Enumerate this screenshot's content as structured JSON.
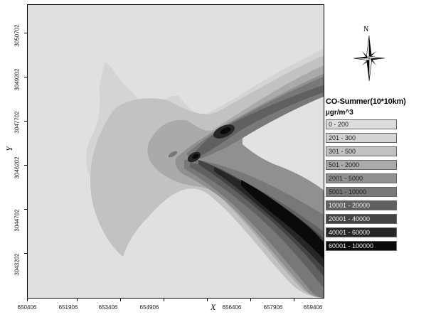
{
  "map": {
    "x_axis_label": "X",
    "y_axis_label": "Y",
    "x_ticks": [
      "650406",
      "651906",
      "653406",
      "654906",
      "656406",
      "657906",
      "659406"
    ],
    "y_ticks": [
      "3050702",
      "3049202",
      "3047702",
      "3046202",
      "3044702",
      "3043202"
    ],
    "north_label": "N",
    "background_color": "#e0e0e0"
  },
  "legend": {
    "title": "CO-Summer(10*10km)",
    "unit": "µgr/m^3",
    "items": [
      {
        "label": "0 - 200",
        "color": "#dcdcdc",
        "label_color": "#222222"
      },
      {
        "label": "201 - 300",
        "color": "#d4d4d4",
        "label_color": "#222222"
      },
      {
        "label": "301 - 500",
        "color": "#c2c2c2",
        "label_color": "#222222"
      },
      {
        "label": "501 - 2000",
        "color": "#aaaaaa",
        "label_color": "#222222"
      },
      {
        "label": "2001 - 5000",
        "color": "#909090",
        "label_color": "#222222"
      },
      {
        "label": "5001 - 10000",
        "color": "#787878",
        "label_color": "#222222"
      },
      {
        "label": "10001 - 20000",
        "color": "#606060",
        "label_color": "#f0f0f0"
      },
      {
        "label": "20001 - 40000",
        "color": "#444444",
        "label_color": "#f0f0f0"
      },
      {
        "label": "40001 - 60000",
        "color": "#262626",
        "label_color": "#f0f0f0"
      },
      {
        "label": "60001 - 100000",
        "color": "#0a0a0a",
        "label_color": "#f0f0f0"
      }
    ]
  }
}
